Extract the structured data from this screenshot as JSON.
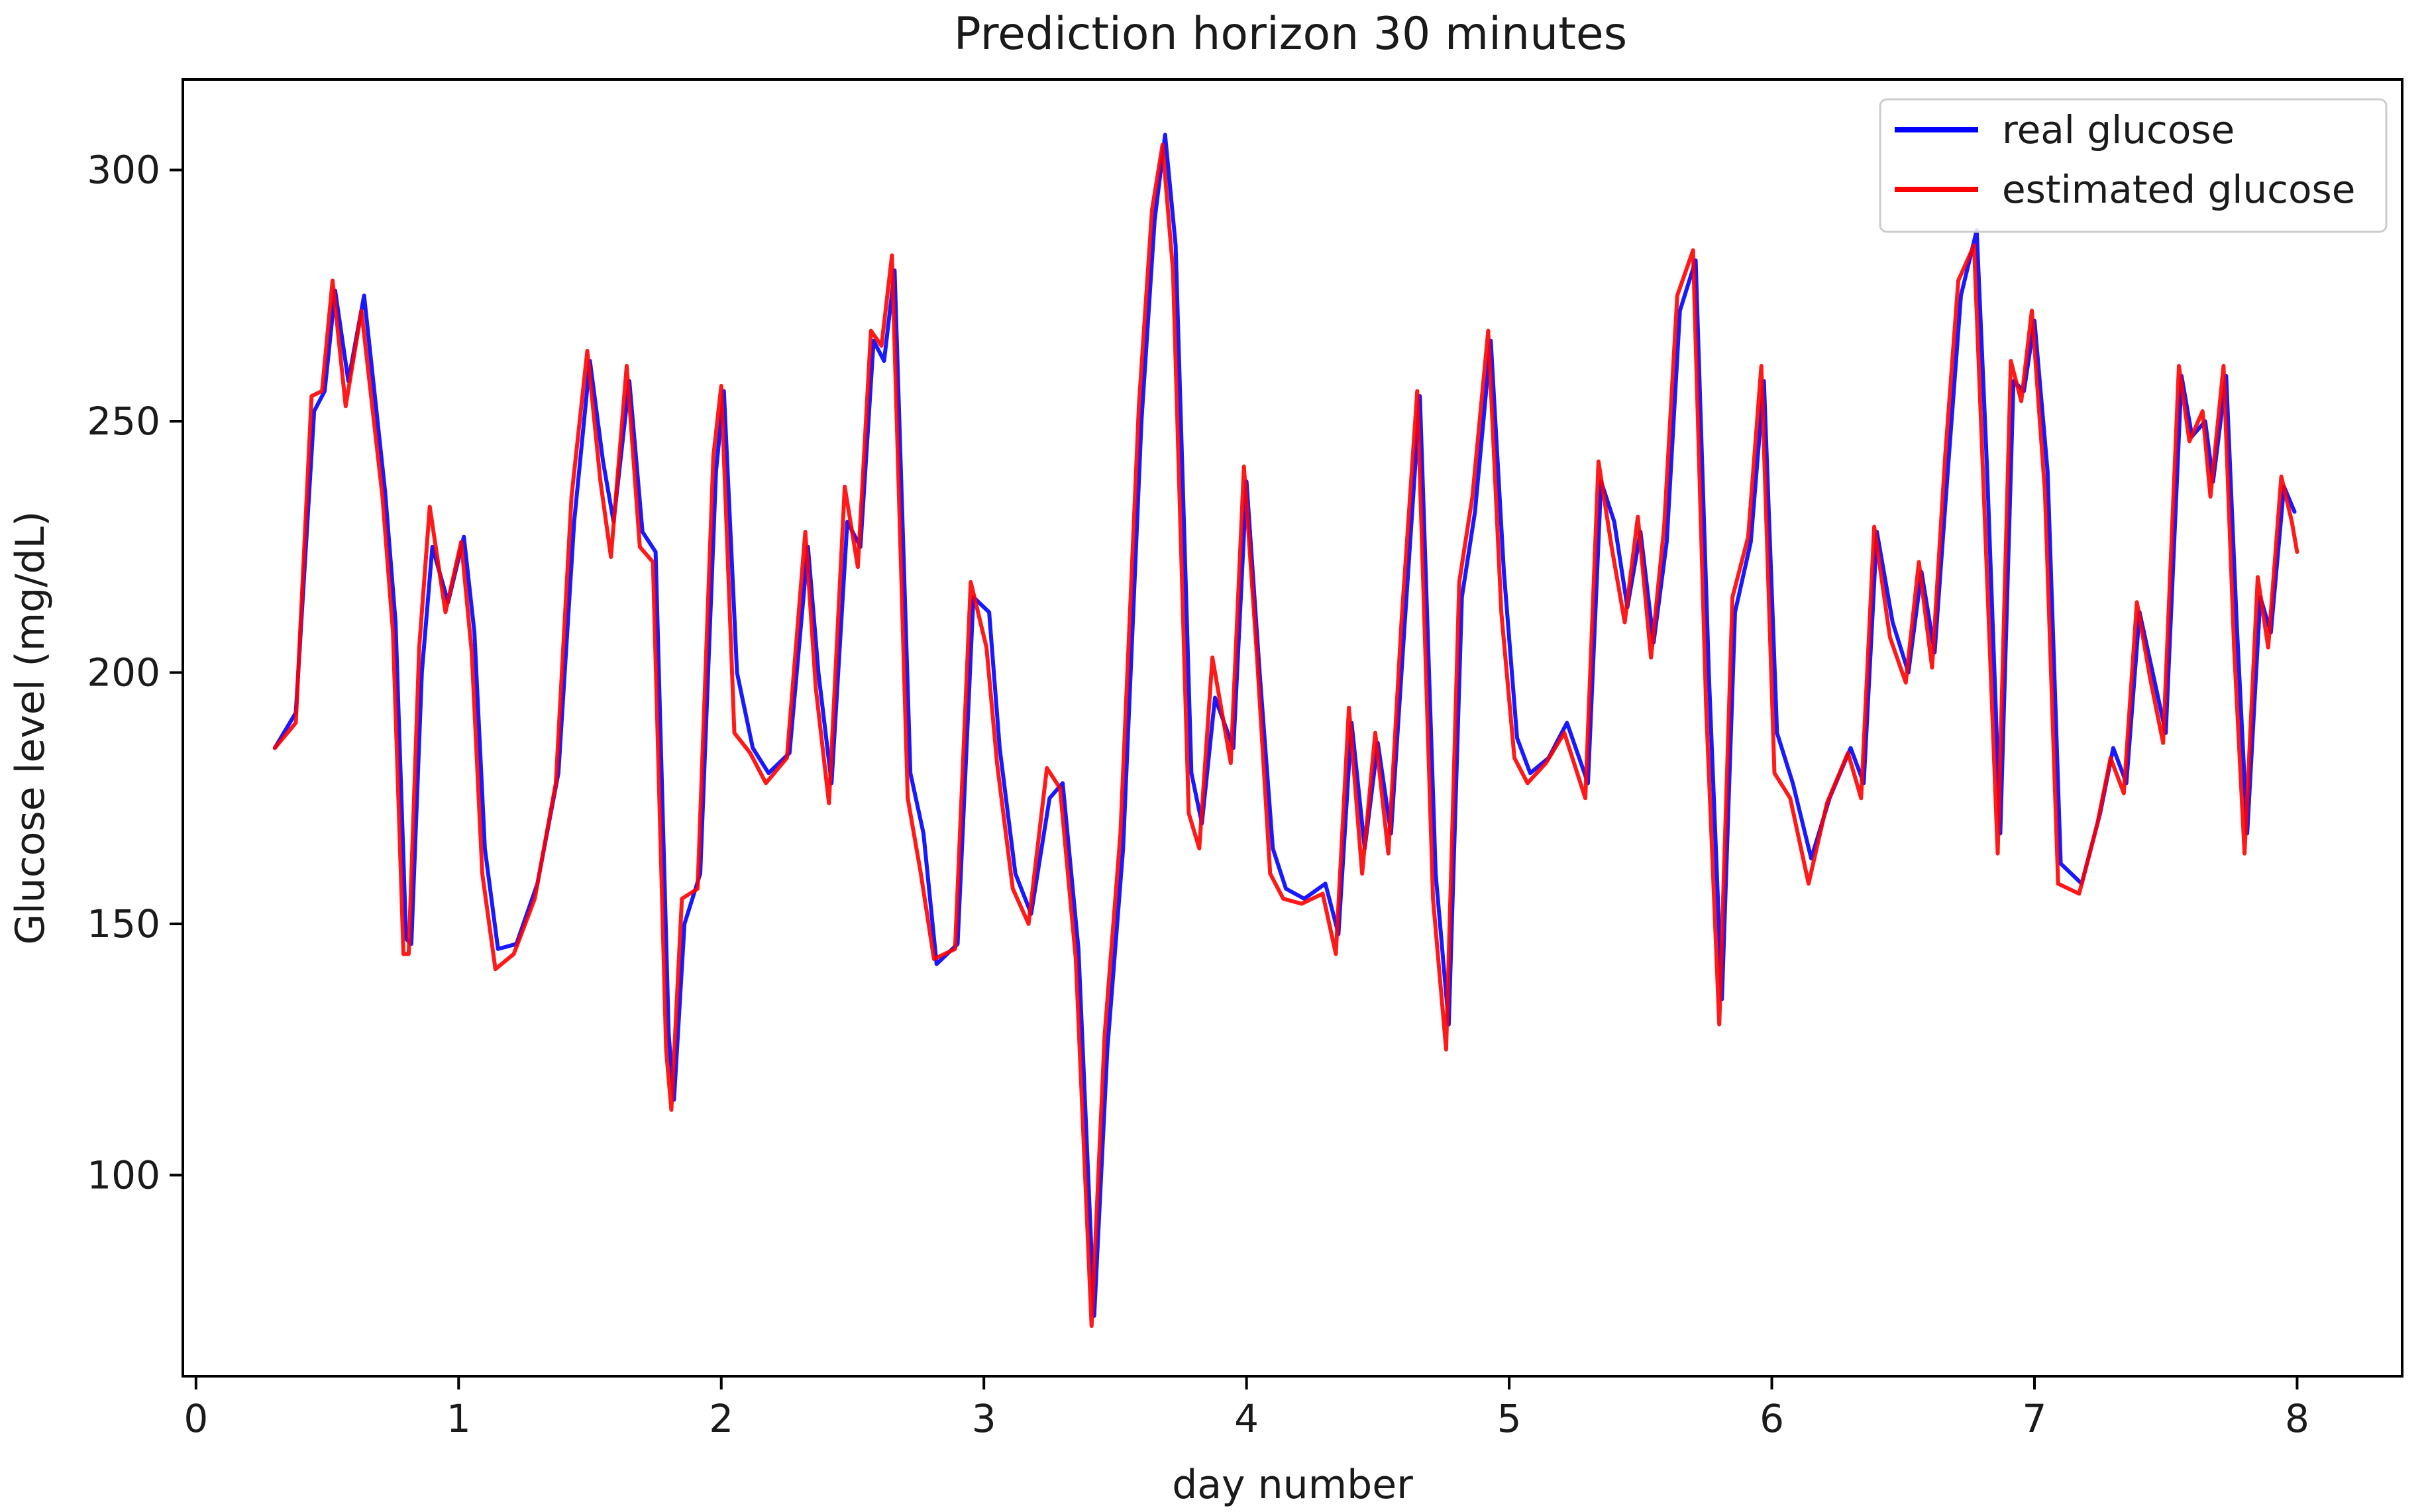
{
  "chart_data": {
    "type": "line",
    "title": "Prediction horizon 30 minutes",
    "xlabel": "day number",
    "ylabel": "Glucose level (mg/dL)",
    "xlim": [
      -0.05,
      8.4
    ],
    "ylim": [
      60,
      318
    ],
    "xticks": [
      0,
      1,
      2,
      3,
      4,
      5,
      6,
      7,
      8
    ],
    "yticks": [
      100,
      150,
      200,
      250,
      300
    ],
    "grid": false,
    "legend": "top-right",
    "series": [
      {
        "name": "real glucose",
        "color": "#0000ff",
        "x": [
          0.3,
          0.38,
          0.45,
          0.49,
          0.53,
          0.58,
          0.64,
          0.72,
          0.76,
          0.8,
          0.82,
          0.86,
          0.9,
          0.96,
          1.02,
          1.06,
          1.1,
          1.15,
          1.22,
          1.3,
          1.38,
          1.44,
          1.5,
          1.55,
          1.59,
          1.65,
          1.7,
          1.75,
          1.8,
          1.82,
          1.86,
          1.92,
          1.98,
          2.01,
          2.06,
          2.12,
          2.18,
          2.26,
          2.33,
          2.37,
          2.42,
          2.48,
          2.53,
          2.58,
          2.62,
          2.66,
          2.72,
          2.77,
          2.82,
          2.9,
          2.96,
          3.02,
          3.06,
          3.12,
          3.18,
          3.25,
          3.3,
          3.36,
          3.42,
          3.47,
          3.53,
          3.6,
          3.65,
          3.69,
          3.73,
          3.79,
          3.83,
          3.88,
          3.95,
          4.0,
          4.05,
          4.1,
          4.15,
          4.22,
          4.3,
          4.35,
          4.4,
          4.45,
          4.5,
          4.55,
          4.6,
          4.66,
          4.72,
          4.77,
          4.82,
          4.87,
          4.93,
          4.98,
          5.03,
          5.08,
          5.15,
          5.22,
          5.3,
          5.35,
          5.4,
          5.45,
          5.5,
          5.55,
          5.6,
          5.65,
          5.71,
          5.76,
          5.81,
          5.86,
          5.92,
          5.97,
          6.02,
          6.08,
          6.15,
          6.22,
          6.3,
          6.35,
          6.4,
          6.46,
          6.52,
          6.57,
          6.62,
          6.67,
          6.72,
          6.78,
          6.82,
          6.87,
          6.92,
          6.96,
          7.0,
          7.05,
          7.1,
          7.18,
          7.25,
          7.3,
          7.35,
          7.4,
          7.45,
          7.5,
          7.56,
          7.6,
          7.65,
          7.68,
          7.73,
          7.77,
          7.81,
          7.86,
          7.9,
          7.95,
          7.99
        ],
        "values": [
          185,
          192,
          252,
          256,
          276,
          258,
          275,
          236,
          210,
          147,
          146,
          200,
          225,
          214,
          227,
          208,
          165,
          145,
          146,
          158,
          180,
          230,
          262,
          242,
          230,
          258,
          228,
          224,
          128,
          115,
          150,
          160,
          240,
          256,
          200,
          185,
          180,
          184,
          225,
          200,
          178,
          230,
          225,
          266,
          262,
          280,
          180,
          168,
          142,
          146,
          215,
          212,
          185,
          160,
          152,
          175,
          178,
          145,
          72,
          125,
          165,
          250,
          290,
          307,
          285,
          180,
          170,
          195,
          185,
          238,
          200,
          165,
          157,
          155,
          158,
          148,
          190,
          165,
          186,
          168,
          208,
          255,
          160,
          130,
          215,
          232,
          266,
          220,
          187,
          180,
          183,
          190,
          178,
          238,
          230,
          213,
          228,
          206,
          226,
          272,
          282,
          200,
          135,
          212,
          226,
          258,
          188,
          178,
          163,
          175,
          185,
          178,
          228,
          210,
          200,
          220,
          204,
          240,
          275,
          288,
          240,
          168,
          258,
          256,
          270,
          240,
          162,
          158,
          172,
          185,
          178,
          212,
          200,
          188,
          259,
          247,
          250,
          238,
          259,
          210,
          168,
          215,
          208,
          237,
          232
        ]
      },
      {
        "name": "estimated glucose",
        "color": "#ff0000",
        "x": [
          0.3,
          0.38,
          0.44,
          0.48,
          0.52,
          0.57,
          0.63,
          0.71,
          0.75,
          0.79,
          0.81,
          0.85,
          0.89,
          0.95,
          1.01,
          1.05,
          1.09,
          1.14,
          1.21,
          1.29,
          1.37,
          1.43,
          1.49,
          1.54,
          1.58,
          1.64,
          1.69,
          1.74,
          1.79,
          1.81,
          1.85,
          1.91,
          1.97,
          2.0,
          2.05,
          2.11,
          2.17,
          2.25,
          2.32,
          2.36,
          2.41,
          2.47,
          2.52,
          2.57,
          2.61,
          2.65,
          2.71,
          2.76,
          2.81,
          2.89,
          2.95,
          3.01,
          3.05,
          3.11,
          3.17,
          3.24,
          3.29,
          3.35,
          3.41,
          3.46,
          3.52,
          3.59,
          3.64,
          3.68,
          3.72,
          3.78,
          3.82,
          3.87,
          3.94,
          3.99,
          4.04,
          4.09,
          4.14,
          4.21,
          4.29,
          4.34,
          4.39,
          4.44,
          4.49,
          4.54,
          4.59,
          4.65,
          4.71,
          4.76,
          4.81,
          4.86,
          4.92,
          4.97,
          5.02,
          5.07,
          5.14,
          5.21,
          5.29,
          5.34,
          5.39,
          5.44,
          5.49,
          5.54,
          5.59,
          5.64,
          5.7,
          5.75,
          5.8,
          5.85,
          5.91,
          5.96,
          6.01,
          6.07,
          6.14,
          6.21,
          6.29,
          6.34,
          6.39,
          6.45,
          6.51,
          6.56,
          6.61,
          6.66,
          6.71,
          6.77,
          6.81,
          6.86,
          6.91,
          6.95,
          6.99,
          7.04,
          7.09,
          7.17,
          7.24,
          7.29,
          7.34,
          7.39,
          7.44,
          7.49,
          7.55,
          7.59,
          7.64,
          7.67,
          7.72,
          7.76,
          7.8,
          7.85,
          7.89,
          7.94,
          7.98,
          8.0
        ],
        "values": [
          185,
          190,
          255,
          256,
          278,
          253,
          272,
          235,
          208,
          144,
          144,
          205,
          233,
          212,
          226,
          204,
          160,
          141,
          144,
          155,
          178,
          235,
          264,
          238,
          223,
          261,
          225,
          222,
          125,
          113,
          155,
          157,
          243,
          257,
          188,
          184,
          178,
          183,
          228,
          197,
          174,
          237,
          221,
          268,
          265,
          283,
          175,
          160,
          143,
          145,
          218,
          205,
          182,
          157,
          150,
          181,
          177,
          143,
          70,
          128,
          168,
          253,
          292,
          305,
          280,
          172,
          165,
          203,
          182,
          241,
          203,
          160,
          155,
          154,
          156,
          144,
          193,
          160,
          188,
          164,
          210,
          256,
          155,
          125,
          218,
          235,
          268,
          212,
          183,
          178,
          182,
          188,
          175,
          242,
          225,
          210,
          231,
          203,
          229,
          275,
          284,
          193,
          130,
          215,
          227,
          261,
          180,
          175,
          158,
          174,
          184,
          175,
          229,
          207,
          198,
          222,
          201,
          243,
          278,
          285,
          232,
          164,
          262,
          254,
          272,
          236,
          158,
          156,
          170,
          183,
          176,
          214,
          199,
          186,
          261,
          246,
          252,
          235,
          261,
          205,
          164,
          219,
          205,
          239,
          230,
          224
        ]
      }
    ]
  }
}
